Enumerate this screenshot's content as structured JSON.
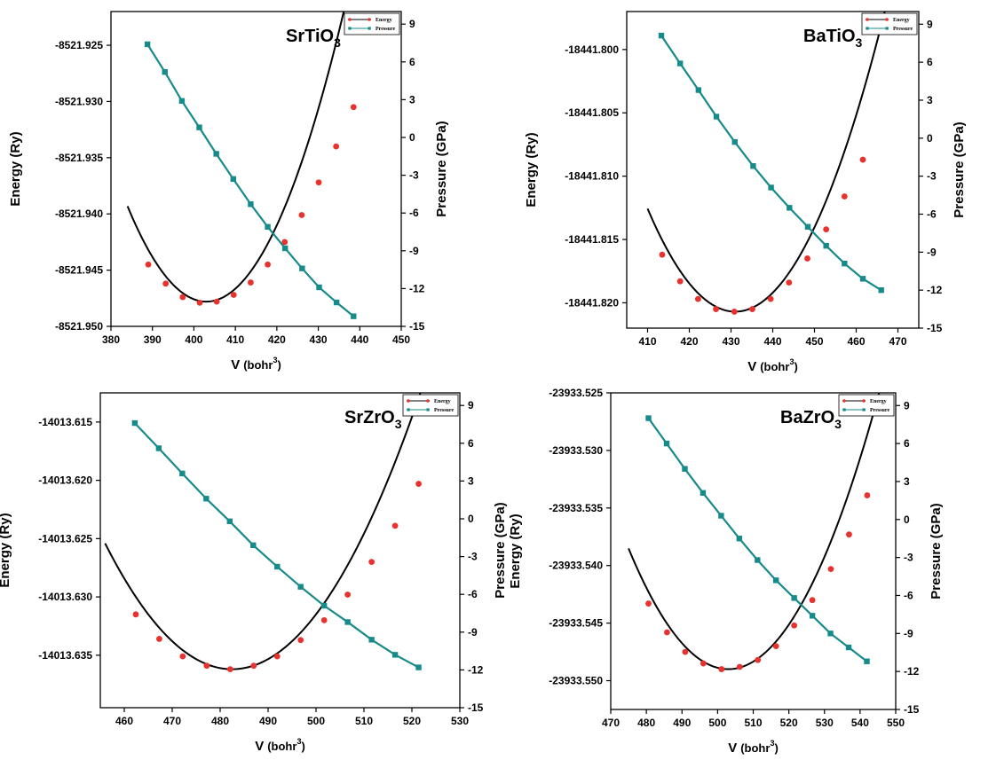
{
  "colors": {
    "energy_marker": "#e8322e",
    "energy_line": "#000000",
    "pressure": "#178a8a",
    "axis": "#000000"
  },
  "chart_data": [
    {
      "type": "line",
      "title": "SrTiO",
      "title_subscript": "3",
      "xlabel": "V",
      "xlabel_unit": "(bohr",
      "xlabel_sup": "3",
      "xlabel_close": ")",
      "ylabel": "Energy (Ry)",
      "y2label": "Pressure (GPa)",
      "xlim": [
        380,
        450
      ],
      "ylim": [
        -8521.95,
        -8521.922
      ],
      "y2lim": [
        -15,
        10
      ],
      "xticks": [
        380,
        390,
        400,
        410,
        420,
        430,
        440,
        450
      ],
      "yticks": [
        "-8521.925",
        "-8521.930",
        "-8521.935",
        "-8521.940",
        "-8521.945",
        "-8521.950"
      ],
      "y2ticks": [
        "9",
        "6",
        "3",
        "0",
        "-3",
        "-6",
        "-9",
        "-12",
        "-15"
      ],
      "legend": [
        "Energy",
        "Pressure"
      ],
      "legend_position": "top-right",
      "energy_fit": {
        "a": 2.35e-05,
        "vmin": 403.0,
        "emin": -8521.9478,
        "xrange": [
          384,
          444
        ]
      },
      "series": [
        {
          "name": "Energy",
          "axis": "left",
          "x": [
            389,
            393.2,
            397.3,
            401.4,
            405.5,
            409.6,
            413.7,
            417.8,
            421.9,
            426,
            430.1,
            434.3,
            438.5
          ],
          "y": [
            -8521.9445,
            -8521.9462,
            -8521.9474,
            -8521.9479,
            -8521.9478,
            -8521.9472,
            -8521.9461,
            -8521.9445,
            -8521.9425,
            -8521.9401,
            -8521.9372,
            -8521.934,
            -8521.9305
          ]
        },
        {
          "name": "Pressure",
          "axis": "right",
          "x": [
            388.8,
            393,
            397.1,
            401.3,
            405.4,
            409.5,
            413.7,
            417.8,
            422,
            426.1,
            430.2,
            434.4,
            438.5
          ],
          "y": [
            7.4,
            5.2,
            2.9,
            0.8,
            -1.3,
            -3.3,
            -5.3,
            -7.1,
            -8.8,
            -10.4,
            -11.9,
            -13.1,
            -14.2
          ]
        }
      ]
    },
    {
      "type": "line",
      "title": "BaTiO",
      "title_subscript": "3",
      "xlabel": "V",
      "xlabel_unit": "(bohr",
      "xlabel_sup": "3",
      "xlabel_close": ")",
      "ylabel": "Energy (Ry)",
      "y2label": "Pressure (GPa)",
      "xlim": [
        405,
        475
      ],
      "ylim": [
        -18441.822,
        -18441.797
      ],
      "y2lim": [
        -15,
        10
      ],
      "xticks": [
        410,
        420,
        430,
        440,
        450,
        460,
        470
      ],
      "yticks": [
        "-18441.800",
        "-18441.805",
        "-18441.810",
        "-18441.815",
        "-18441.820"
      ],
      "y2ticks": [
        "9",
        "6",
        "3",
        "0",
        "-3",
        "-6",
        "-9",
        "-12",
        "-15"
      ],
      "legend": [
        "Energy",
        "Pressure"
      ],
      "legend_position": "top-right",
      "energy_fit": {
        "a": 1.845e-05,
        "vmin": 431.0,
        "emin": -18441.8207,
        "xrange": [
          410,
          472
        ]
      },
      "series": [
        {
          "name": "Energy",
          "axis": "left",
          "x": [
            413.5,
            417.8,
            422.1,
            426.4,
            430.8,
            435.1,
            439.5,
            443.9,
            448.3,
            452.8,
            457.2,
            461.6
          ],
          "y": [
            -18441.8162,
            -18441.8183,
            -18441.8197,
            -18441.8205,
            -18441.8207,
            -18441.8205,
            -18441.8197,
            -18441.8184,
            -18441.8165,
            -18441.8142,
            -18441.8116,
            -18441.8087
          ]
        },
        {
          "name": "Pressure",
          "axis": "right",
          "x": [
            413.3,
            417.8,
            422.2,
            426.5,
            430.9,
            435.3,
            439.6,
            444,
            448.4,
            452.8,
            457.2,
            461.6,
            466
          ],
          "y": [
            8.1,
            5.9,
            3.8,
            1.7,
            -0.3,
            -2.2,
            -3.9,
            -5.5,
            -7.0,
            -8.5,
            -9.9,
            -11.1,
            -12.0
          ]
        }
      ]
    },
    {
      "type": "line",
      "title": "SrZrO",
      "title_subscript": "3",
      "xlabel": "V",
      "xlabel_unit": "(bohr",
      "xlabel_sup": "3",
      "xlabel_close": ")",
      "ylabel": "Energy (Ry)",
      "y2label": "Pressure (GPa)",
      "xlim": [
        455,
        530
      ],
      "ylim": [
        -14013.6395,
        -14013.6125
      ],
      "y2lim": [
        -15,
        10
      ],
      "xticks": [
        460,
        470,
        480,
        490,
        500,
        510,
        520,
        530
      ],
      "yticks": [
        "-14013.615",
        "-14013.620",
        "-14013.625",
        "-14013.630",
        "-14013.635"
      ],
      "y2ticks": [
        "9",
        "6",
        "3",
        "0",
        "-3",
        "-6",
        "-9",
        "-12",
        "-15"
      ],
      "legend": [
        "Energy",
        "Pressure"
      ],
      "legend_position": "top-right",
      "energy_fit": {
        "a": 1.537e-05,
        "vmin": 482.5,
        "emin": -14013.6362,
        "xrange": [
          456,
          528
        ]
      },
      "series": [
        {
          "name": "Energy",
          "axis": "left",
          "x": [
            462.4,
            467.3,
            472.2,
            477.2,
            482.1,
            487.0,
            491.9,
            496.8,
            501.7,
            506.6,
            511.6,
            516.5,
            521.4
          ],
          "y": [
            -14013.6315,
            -14013.6336,
            -14013.6351,
            -14013.6359,
            -14013.6362,
            -14013.6359,
            -14013.6351,
            -14013.6337,
            -14013.632,
            -14013.6298,
            -14013.627,
            -14013.6239,
            -14013.6203
          ]
        },
        {
          "name": "Pressure",
          "axis": "right",
          "x": [
            462.2,
            467.2,
            472.1,
            477.1,
            482.0,
            486.9,
            491.9,
            496.8,
            501.7,
            506.6,
            511.6,
            516.5,
            521.4
          ],
          "y": [
            7.6,
            5.6,
            3.6,
            1.6,
            -0.2,
            -2.1,
            -3.8,
            -5.4,
            -6.9,
            -8.2,
            -9.6,
            -10.8,
            -11.8
          ]
        }
      ]
    },
    {
      "type": "line",
      "title": "BaZrO",
      "title_subscript": "3",
      "xlabel": "V",
      "xlabel_unit": "(bohr",
      "xlabel_sup": "3",
      "xlabel_close": ")",
      "ylabel": "Energy (Ry)",
      "y2label": "Pressure (GPa)",
      "xlim": [
        470,
        550
      ],
      "ylim": [
        -23933.5525,
        -23933.525
      ],
      "y2lim": [
        -15,
        10
      ],
      "xticks": [
        470,
        480,
        490,
        500,
        510,
        520,
        530,
        540,
        550
      ],
      "yticks": [
        "-23933.525",
        "-23933.530",
        "-23933.535",
        "-23933.540",
        "-23933.545",
        "-23933.550"
      ],
      "y2ticks": [
        "9",
        "6",
        "3",
        "0",
        "-3",
        "-6",
        "-9",
        "-12",
        "-15"
      ],
      "legend": [
        "Energy",
        "Pressure"
      ],
      "legend_position": "top-right",
      "energy_fit": {
        "a": 1.338e-05,
        "vmin": 503.0,
        "emin": -23933.549,
        "xrange": [
          475,
          548
        ]
      },
      "series": [
        {
          "name": "Energy",
          "axis": "left",
          "x": [
            480.6,
            485.8,
            490.9,
            496.0,
            501.1,
            506.2,
            511.3,
            516.4,
            521.5,
            526.6,
            531.8,
            536.9,
            542.0
          ],
          "y": [
            -23933.5433,
            -23933.5458,
            -23933.5475,
            -23933.5485,
            -23933.549,
            -23933.5488,
            -23933.5482,
            -23933.547,
            -23933.5452,
            -23933.543,
            -23933.5403,
            -23933.5373,
            -23933.5339
          ]
        },
        {
          "name": "Pressure",
          "axis": "right",
          "x": [
            480.6,
            485.7,
            490.8,
            495.9,
            501.0,
            506.1,
            511.2,
            516.4,
            521.5,
            526.6,
            531.7,
            536.8,
            541.9
          ],
          "y": [
            8.0,
            6.0,
            4.0,
            2.1,
            0.3,
            -1.5,
            -3.2,
            -4.8,
            -6.2,
            -7.6,
            -9.0,
            -10.1,
            -11.2
          ]
        }
      ]
    }
  ]
}
